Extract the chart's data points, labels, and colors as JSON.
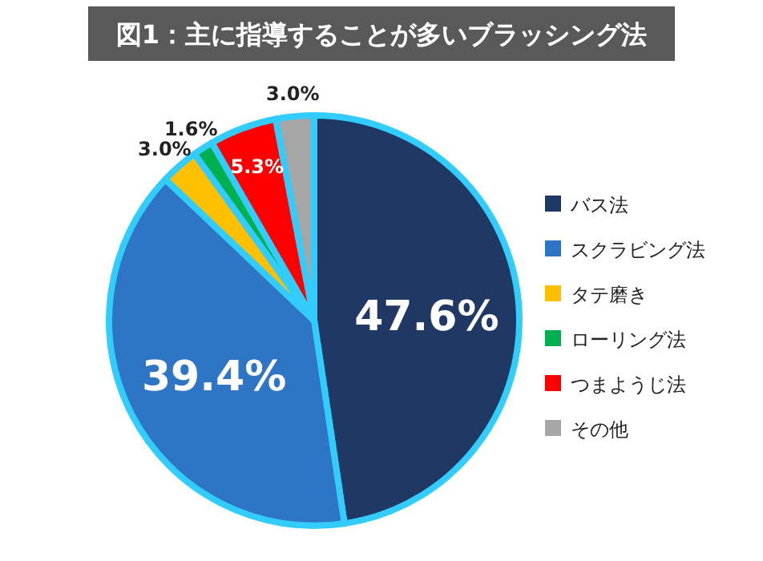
{
  "chart_data": {
    "type": "pie",
    "title": "図1：主に指導することが多いブラッシング法",
    "categories": [
      "バス法",
      "スクラビング法",
      "タテ磨き",
      "ローリング法",
      "つまようじ法",
      "その他"
    ],
    "values": [
      47.6,
      39.4,
      3.0,
      1.6,
      5.3,
      3.0
    ],
    "colors": [
      "#1f3864",
      "#2e75c6",
      "#ffc000",
      "#00b050",
      "#ff0000",
      "#a6a6a6"
    ],
    "value_labels": [
      "47.6%",
      "39.4%",
      "3.0%",
      "1.6%",
      "5.3%",
      "3.0%"
    ],
    "legend": "right"
  }
}
